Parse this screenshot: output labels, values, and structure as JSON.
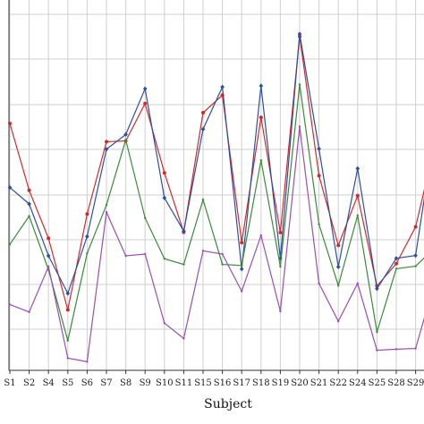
{
  "chart_data": {
    "type": "line",
    "xlabel": "Subject",
    "ylabel": "",
    "title": "",
    "grid": true,
    "ylim": [
      0,
      100
    ],
    "categories": [
      "S1",
      "S2",
      "S4",
      "S5",
      "S6",
      "S7",
      "S8",
      "S9",
      "S10",
      "S11",
      "S15",
      "S16",
      "S17",
      "S18",
      "S19",
      "S20",
      "S21",
      "S22",
      "S24",
      "S25",
      "S28",
      "S29"
    ],
    "extra_x_beyond_last": 0.9,
    "series": [
      {
        "color": "#d62728",
        "marker": "circle",
        "values": [
          69.0,
          50.3,
          36.9,
          16.9,
          43.7,
          63.9,
          64.1,
          74.6,
          55.2,
          38.6,
          72.0,
          76.9,
          35.7,
          70.7,
          38.5,
          93.3,
          54.4,
          34.9,
          48.8,
          23.6,
          29.8,
          40.1
        ],
        "extra_value": 60.6
      },
      {
        "color": "#2c4f9e",
        "marker": "diamond",
        "values": [
          51.1,
          46.5,
          32.0,
          21.5,
          37.4,
          61.8,
          65.9,
          78.7,
          48.2,
          38.9,
          67.4,
          79.2,
          28.3,
          79.5,
          31.3,
          94.0,
          61.9,
          28.9,
          56.4,
          22.8,
          31.3,
          32.1
        ],
        "extra_value": 63.9
      },
      {
        "color": "#3a8a3a",
        "marker": "none",
        "values": [
          35.2,
          43.1,
          28.1,
          8.3,
          32.7,
          46.2,
          64.4,
          42.6,
          31.2,
          29.6,
          47.7,
          29.6,
          29.3,
          58.7,
          29.0,
          79.9,
          40.8,
          23.7,
          43.3,
          10.7,
          28.4,
          29.1
        ],
        "extra_value": 33.8
      },
      {
        "color": "#9a4fb0",
        "marker": "none",
        "values": [
          18.4,
          16.3,
          29.0,
          3.4,
          2.4,
          44.2,
          32.0,
          32.5,
          13.2,
          8.9,
          33.4,
          32.5,
          22.1,
          37.7,
          16.5,
          68.1,
          24.3,
          13.7,
          24.3,
          5.6,
          5.9,
          6.1
        ],
        "extra_value": 23.0
      }
    ]
  }
}
